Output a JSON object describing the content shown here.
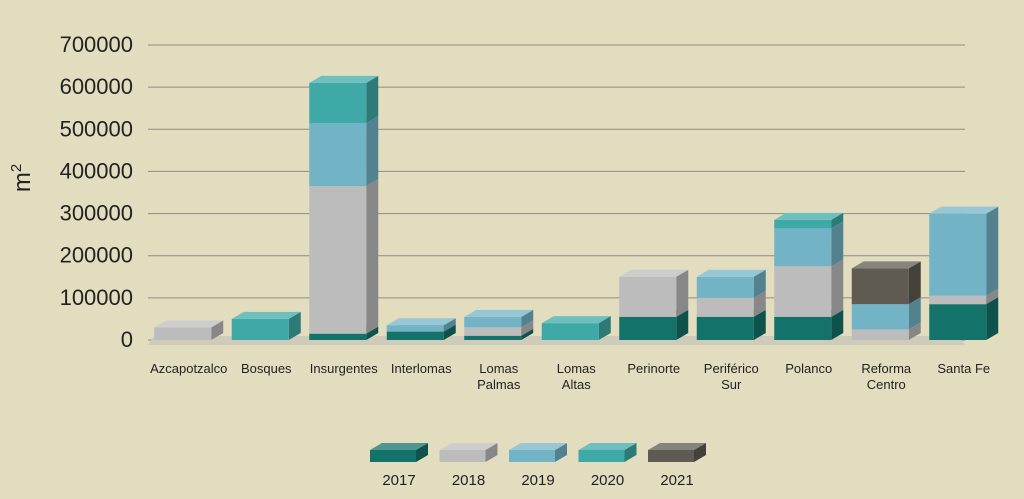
{
  "chart_data": {
    "type": "bar",
    "stacked": true,
    "three_d": true,
    "ylabel": "m",
    "ylabel_sup": "2",
    "ylim": [
      0,
      700000
    ],
    "yticks": [
      "0",
      "100000",
      "200000",
      "300000",
      "400000",
      "500000",
      "600000",
      "700000"
    ],
    "grid": true,
    "legend_position": "bottom-center",
    "categories": [
      [
        "Azcapotzalco"
      ],
      [
        "Bosques"
      ],
      [
        "Insurgentes"
      ],
      [
        "Interlomas"
      ],
      [
        "Lomas",
        "Palmas"
      ],
      [
        "Lomas",
        "Altas"
      ],
      [
        "Perinorte"
      ],
      [
        "Periférico",
        "Sur"
      ],
      [
        "Polanco"
      ],
      [
        "Reforma",
        "Centro"
      ],
      [
        "Santa Fe"
      ]
    ],
    "series": [
      {
        "name": "2017",
        "color": "#13726a",
        "values": [
          0,
          0,
          15000,
          20000,
          10000,
          0,
          55000,
          55000,
          55000,
          0,
          85000
        ]
      },
      {
        "name": "2018",
        "color": "#bcbcbc",
        "values": [
          30000,
          0,
          350000,
          0,
          20000,
          0,
          95000,
          45000,
          120000,
          25000,
          20000
        ]
      },
      {
        "name": "2019",
        "color": "#72b4c6",
        "values": [
          0,
          0,
          150000,
          15000,
          25000,
          0,
          0,
          50000,
          90000,
          60000,
          195000
        ]
      },
      {
        "name": "2020",
        "color": "#3fa9a8",
        "values": [
          0,
          50000,
          95000,
          0,
          0,
          40000,
          0,
          0,
          20000,
          0,
          0
        ]
      },
      {
        "name": "2021",
        "color": "#5f5a52",
        "values": [
          0,
          0,
          0,
          0,
          0,
          0,
          0,
          0,
          0,
          85000,
          0
        ]
      }
    ]
  }
}
